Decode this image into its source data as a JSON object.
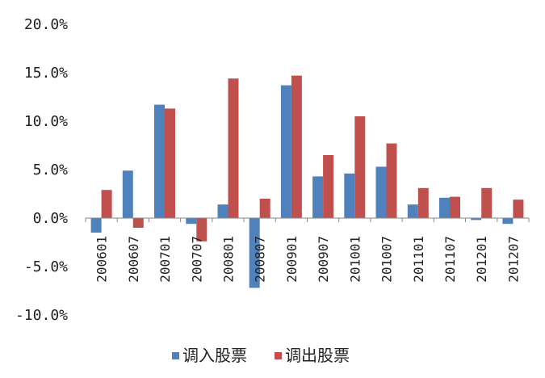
{
  "chart_data": {
    "type": "bar",
    "categories": [
      "200601",
      "200607",
      "200701",
      "200707",
      "200801",
      "200807",
      "200901",
      "200907",
      "201001",
      "201007",
      "201101",
      "201107",
      "201201",
      "201207"
    ],
    "series": [
      {
        "name": "调入股票",
        "color": "#4F81BD",
        "values": [
          -1.5,
          4.9,
          11.7,
          -0.6,
          1.4,
          -7.2,
          13.7,
          4.3,
          4.6,
          5.3,
          1.4,
          2.1,
          -0.2,
          -0.6
        ]
      },
      {
        "name": "调出股票",
        "color": "#C0504D",
        "values": [
          2.9,
          -1.0,
          11.3,
          -2.4,
          14.4,
          2.0,
          14.7,
          6.5,
          10.5,
          7.7,
          3.1,
          2.2,
          3.1,
          1.9
        ]
      }
    ],
    "y_ticks": [
      "20.0%",
      "15.0%",
      "10.0%",
      "5.0%",
      "0.0%",
      "-5.0%",
      "-10.0%"
    ],
    "ylim": [
      -10,
      20
    ],
    "grid": false,
    "legend_position": "bottom"
  }
}
